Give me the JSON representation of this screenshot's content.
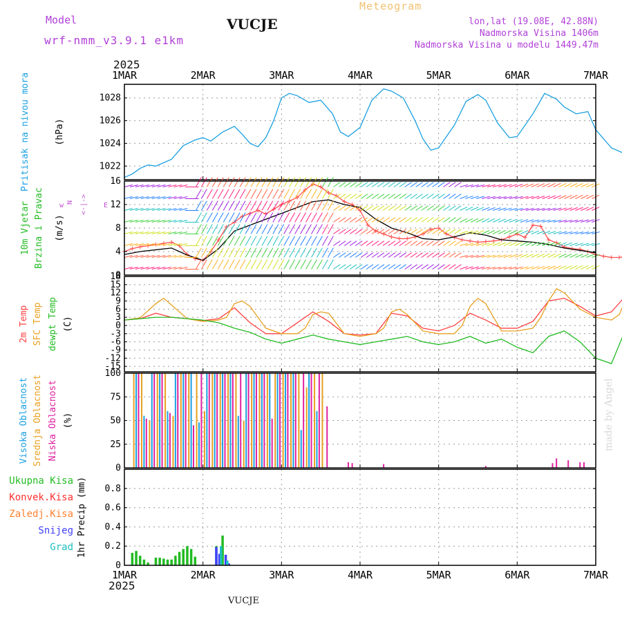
{
  "header": {
    "model_label": "Model",
    "model_name": "wrf-nmm_v3.9.1 e1km",
    "station": "VUCJE",
    "chart_kind": "Meteogram",
    "lonlat": "lon,lat (19.08E, 42.88N)",
    "altitude": "Nadmorska Visina 1406m",
    "model_altitude": "Nadmorska Visina u modelu 1449.47m",
    "year": "2025",
    "footer_station": "VUCJE",
    "watermark": "made by Angel"
  },
  "chart_data": [
    {
      "id": "pressure",
      "type": "line",
      "x_ticks": [
        "1MAR",
        "2MAR",
        "3MAR",
        "4MAR",
        "5MAR",
        "6MAR",
        "7MAR"
      ],
      "labels": [
        {
          "text": "Pritisak na nivou mora",
          "color": "#1aa0e0"
        },
        {
          "text": "(hPa)",
          "color": "#000000"
        }
      ],
      "ylim": [
        1020.8,
        1029.2
      ],
      "yticks": [
        1022,
        1024,
        1026,
        1028
      ],
      "series": [
        {
          "color": "#1aa0e0",
          "x": [
            0,
            0.1,
            0.2,
            0.3,
            0.4,
            0.5,
            0.6,
            0.75,
            0.9,
            1.0,
            1.1,
            1.25,
            1.4,
            1.5,
            1.6,
            1.7,
            1.8,
            1.9,
            2.0,
            2.1,
            2.2,
            2.35,
            2.5,
            2.65,
            2.75,
            2.85,
            3.0,
            3.15,
            3.3,
            3.4,
            3.55,
            3.7,
            3.8,
            3.9,
            4.0,
            4.2,
            4.35,
            4.5,
            4.6,
            4.75,
            4.9,
            5.0,
            5.2,
            5.35,
            5.5,
            5.6,
            5.75,
            5.9,
            6.0,
            6.2,
            6.4,
            6.5,
            6.6,
            6.75,
            6.9,
            7.0
          ],
          "values": [
            1021,
            1021.3,
            1021.8,
            1022.1,
            1022.0,
            1022.3,
            1022.6,
            1023.8,
            1024.3,
            1024.5,
            1024.2,
            1025.0,
            1025.5,
            1024.8,
            1024.0,
            1023.7,
            1024.5,
            1026.0,
            1028.0,
            1028.4,
            1028.2,
            1027.6,
            1027.8,
            1026.6,
            1025.0,
            1024.6,
            1025.4,
            1027.8,
            1028.8,
            1028.6,
            1028.0,
            1026.0,
            1024.4,
            1023.4,
            1023.6,
            1025.6,
            1027.7,
            1028.3,
            1027.8,
            1025.8,
            1024.5,
            1024.6,
            1026.6,
            1028.4,
            1027.9,
            1027.2,
            1026.6,
            1026.8,
            1025.2,
            1023.6,
            1023.0,
            1024.0,
            1024.3,
            1024.0,
            1023.6,
            1023.4
          ]
        }
      ]
    },
    {
      "id": "wind",
      "type": "line",
      "x_ticks": [
        "1MAR",
        "2MAR",
        "3MAR",
        "4MAR",
        "5MAR",
        "6MAR",
        "7MAR"
      ],
      "labels": [
        {
          "text": "10m Vjetar",
          "color": "#22bb22"
        },
        {
          "text": "Brzina i Pravac",
          "color": "#22bb22"
        },
        {
          "text": "(m/s)",
          "color": "#000000"
        }
      ],
      "ylim": [
        0,
        16
      ],
      "yticks": [
        0,
        4,
        8,
        12,
        16
      ],
      "compass": [
        "w",
        "<-|->",
        "E",
        "N",
        "S"
      ],
      "series": [
        {
          "name": "gust",
          "color": "#ff5050",
          "x": [
            0,
            0.1,
            0.2,
            0.3,
            0.4,
            0.5,
            0.6,
            0.7,
            0.8,
            0.9,
            1.0,
            1.1,
            1.2,
            1.3,
            1.4,
            1.5,
            1.6,
            1.7,
            1.8,
            1.9,
            2.0,
            2.1,
            2.2,
            2.3,
            2.4,
            2.5,
            2.6,
            2.7,
            2.8,
            2.9,
            3.0,
            3.1,
            3.2,
            3.3,
            3.4,
            3.5,
            3.6,
            3.7,
            3.8,
            3.9,
            4.0,
            4.1,
            4.2,
            4.3,
            4.4,
            4.5,
            4.6,
            4.7,
            4.8,
            4.9,
            5.0,
            5.1,
            5.2,
            5.3,
            5.4,
            5.5,
            5.6,
            5.7,
            5.8,
            5.9,
            6.0,
            6.1,
            6.2,
            6.3,
            6.4,
            6.5,
            6.6,
            6.7,
            6.8,
            6.9,
            7.0
          ],
          "values": [
            4,
            4.5,
            4.8,
            5,
            5.2,
            5.4,
            5.6,
            5,
            3.5,
            2.8,
            2.5,
            4,
            6,
            8.2,
            9,
            10,
            10.5,
            11,
            10.4,
            11.2,
            12,
            12.6,
            13.2,
            14.5,
            15.5,
            15,
            14,
            13.5,
            12.5,
            12,
            11,
            8.5,
            7.5,
            7,
            6.5,
            6.2,
            6.2,
            6.5,
            7,
            7.8,
            8,
            7,
            6.4,
            6,
            5.8,
            5.6,
            5.7,
            5.8,
            6,
            6.5,
            7,
            6.4,
            8.5,
            8.3,
            6,
            5.5,
            4.8,
            4.5,
            4.4,
            4,
            3.5,
            3.2,
            3,
            3,
            3.2,
            3.4,
            3.2,
            3,
            2.6,
            2.3,
            2.1
          ]
        },
        {
          "name": "mean",
          "color": "#000000",
          "x": [
            0,
            0.2,
            0.4,
            0.6,
            0.8,
            1.0,
            1.2,
            1.4,
            1.6,
            1.8,
            2.0,
            2.2,
            2.4,
            2.6,
            2.8,
            3.0,
            3.2,
            3.4,
            3.6,
            3.8,
            4.0,
            4.2,
            4.4,
            4.6,
            4.8,
            5.0,
            5.2,
            5.4,
            5.6,
            5.8,
            6.0
          ],
          "values": [
            3.5,
            4,
            4.3,
            4.6,
            3.4,
            2.5,
            4.5,
            7.5,
            8.5,
            9.5,
            10.5,
            11.5,
            12.5,
            12.8,
            12,
            11.5,
            9.5,
            8,
            7.2,
            6.2,
            6,
            6.5,
            7.2,
            6.8,
            6,
            5.8,
            5.6,
            5.2,
            4.6,
            4.2,
            3.8
          ]
        }
      ]
    },
    {
      "id": "temperature",
      "type": "line",
      "x_ticks": [
        "1MAR",
        "2MAR",
        "3MAR",
        "4MAR",
        "5MAR",
        "6MAR",
        "7MAR"
      ],
      "labels": [
        {
          "text": "2m Temp",
          "color": "#ff4040"
        },
        {
          "text": "SFC Temp",
          "color": "#e8a020"
        },
        {
          "text": "dewpt Temp",
          "color": "#22bb22"
        },
        {
          "text": "(C)",
          "color": "#000000"
        }
      ],
      "ylim": [
        -17,
        18
      ],
      "yticks": [
        -15,
        -12,
        -9,
        -6,
        -3,
        0,
        3,
        6,
        9,
        12,
        15,
        18
      ],
      "series": [
        {
          "name": "2m Temp",
          "color": "#ff4040",
          "x": [
            0,
            0.2,
            0.4,
            0.6,
            0.8,
            1.0,
            1.2,
            1.4,
            1.6,
            1.8,
            2.0,
            2.2,
            2.4,
            2.6,
            2.8,
            3.0,
            3.2,
            3.4,
            3.6,
            3.8,
            4.0,
            4.2,
            4.4,
            4.6,
            4.8,
            5.0,
            5.2,
            5.4,
            5.6,
            5.8,
            6.0,
            6.2,
            6.4,
            6.6,
            6.8,
            7.0
          ],
          "values": [
            2,
            2.5,
            4.5,
            3,
            2.5,
            1.8,
            2.5,
            6.5,
            1,
            -3,
            -3,
            1,
            5,
            1.5,
            -3,
            -3.5,
            -3,
            4.5,
            3.5,
            -1,
            -2,
            0,
            4.5,
            2,
            -1,
            -1,
            1.5,
            9,
            10,
            7,
            3.5,
            5,
            11.5,
            8,
            7.5,
            7.5
          ]
        },
        {
          "name": "SFC Temp",
          "color": "#e8a020",
          "x": [
            0,
            0.2,
            0.4,
            0.5,
            0.6,
            0.8,
            1.0,
            1.2,
            1.3,
            1.4,
            1.5,
            1.6,
            1.8,
            2.0,
            2.2,
            2.3,
            2.4,
            2.5,
            2.6,
            2.8,
            3.0,
            3.2,
            3.3,
            3.4,
            3.5,
            3.6,
            3.8,
            4.0,
            4.2,
            4.3,
            4.4,
            4.5,
            4.6,
            4.8,
            5.0,
            5.2,
            5.3,
            5.4,
            5.5,
            5.6,
            5.8,
            6.0,
            6.2,
            6.3,
            6.4,
            6.5,
            6.6,
            6.8,
            7.0
          ],
          "values": [
            2,
            2.8,
            8,
            10,
            7.5,
            2.5,
            1.5,
            2,
            3,
            8,
            9,
            7,
            -1,
            -3,
            -3,
            -1,
            4,
            5,
            4.5,
            -3,
            -4,
            -3,
            -1,
            5,
            6,
            4,
            -2,
            -3,
            -3,
            0,
            7,
            10,
            8,
            -2,
            -2,
            -1,
            3,
            9,
            13.5,
            12,
            6,
            3,
            2,
            4,
            11,
            16,
            10,
            1,
            0.5
          ]
        },
        {
          "name": "dewpt Temp",
          "color": "#22bb22",
          "x": [
            0,
            0.2,
            0.4,
            0.6,
            0.8,
            1.0,
            1.2,
            1.4,
            1.6,
            1.8,
            2.0,
            2.2,
            2.4,
            2.6,
            2.8,
            3.0,
            3.2,
            3.4,
            3.6,
            3.8,
            4.0,
            4.2,
            4.4,
            4.6,
            4.8,
            5.0,
            5.2,
            5.4,
            5.6,
            5.8,
            6.0,
            6.2,
            6.4,
            6.6,
            6.8,
            7.0
          ],
          "values": [
            2,
            2.5,
            3,
            3,
            2.5,
            2,
            1,
            -1,
            -2.5,
            -5,
            -6.5,
            -5,
            -3.5,
            -5,
            -6,
            -7,
            -6,
            -5,
            -4,
            -6,
            -7,
            -6,
            -4,
            -6.5,
            -5,
            -8,
            -10,
            -4,
            -2,
            -6,
            -12,
            -14,
            0,
            -5,
            -15,
            -11
          ]
        }
      ]
    },
    {
      "id": "clouds",
      "type": "bar",
      "x_ticks": [
        "1MAR",
        "2MAR",
        "3MAR",
        "4MAR",
        "5MAR",
        "6MAR",
        "7MAR"
      ],
      "labels": [
        {
          "text": "Visoka Oblacnost",
          "color": "#1aa0e0"
        },
        {
          "text": "Srednja Oblacnost",
          "color": "#e8a020"
        },
        {
          "text": "Niska Oblacnost",
          "color": "#e020a0"
        },
        {
          "text": "(%)",
          "color": "#000000"
        }
      ],
      "ylim": [
        0,
        100
      ],
      "yticks": [
        0,
        25,
        50,
        75,
        100
      ],
      "series": [
        {
          "name": "Visoka Oblacnost",
          "color": "#1aa0e0",
          "x": [
            0.15,
            0.25,
            0.35,
            0.45,
            0.55,
            0.65,
            0.75,
            0.85,
            0.95,
            1.05,
            1.15,
            1.25,
            1.35,
            1.45,
            1.55,
            1.65,
            1.75,
            1.85,
            1.95,
            2.05,
            2.15,
            2.25,
            2.35,
            2.45
          ],
          "values": [
            100,
            55,
            100,
            100,
            60,
            100,
            100,
            100,
            48,
            100,
            100,
            100,
            100,
            55,
            100,
            100,
            100,
            100,
            100,
            100,
            100,
            40,
            100,
            60
          ]
        },
        {
          "name": "Srednja Oblacnost",
          "color": "#e8a020",
          "x": [
            0.12,
            0.22,
            0.32,
            0.42,
            0.52,
            0.62,
            0.72,
            0.82,
            0.92,
            1.02,
            1.12,
            1.22,
            1.32,
            1.42,
            1.52,
            1.62,
            1.72,
            1.82,
            1.92,
            2.02,
            2.12,
            2.22,
            2.32,
            2.42,
            2.52
          ],
          "values": [
            100,
            100,
            50,
            100,
            100,
            55,
            100,
            100,
            100,
            60,
            100,
            100,
            100,
            100,
            50,
            100,
            100,
            100,
            100,
            100,
            100,
            100,
            85,
            100,
            100
          ]
        },
        {
          "name": "Niska Oblacnost",
          "color": "#e020a0",
          "x": [
            0.18,
            0.28,
            0.38,
            0.48,
            0.58,
            0.68,
            0.78,
            0.88,
            0.98,
            1.08,
            1.18,
            1.28,
            1.38,
            1.48,
            1.58,
            1.68,
            1.78,
            1.88,
            1.98,
            2.08,
            2.18,
            2.28,
            2.38,
            2.48,
            2.58,
            2.85,
            2.9,
            3.3,
            4.6,
            5.45,
            5.5,
            5.65,
            5.8,
            5.85,
            6.45
          ],
          "values": [
            100,
            52,
            100,
            100,
            58,
            100,
            100,
            45,
            100,
            100,
            100,
            100,
            100,
            100,
            100,
            100,
            100,
            52,
            100,
            100,
            100,
            100,
            100,
            100,
            65,
            6,
            5,
            4,
            2,
            5,
            10,
            8,
            6,
            6,
            10
          ]
        }
      ]
    },
    {
      "id": "precip",
      "type": "bar",
      "x_ticks": [
        "1MAR",
        "2MAR",
        "3MAR",
        "4MAR",
        "5MAR",
        "6MAR",
        "7MAR"
      ],
      "bottom_labels": [
        "1MAR",
        "2MAR",
        "3MAR",
        "4MAR",
        "5MAR",
        "6MAR",
        "7MAR"
      ],
      "labels": [
        {
          "text": "1hr Precip (mm)",
          "color": "#000000"
        }
      ],
      "legend": [
        {
          "text": "Ukupna Kisa",
          "color": "#22bb22"
        },
        {
          "text": "Konvek.Kisa",
          "color": "#ff3030"
        },
        {
          "text": "Zaledj.Kisa",
          "color": "#ff8030"
        },
        {
          "text": "Snijeg",
          "color": "#4040ff"
        },
        {
          "text": "Grad",
          "color": "#20c0c0"
        }
      ],
      "ylim": [
        0,
        1.0
      ],
      "yticks": [
        0,
        0.2,
        0.4,
        0.6,
        0.8
      ],
      "series": [
        {
          "name": "Ukupna Kisa",
          "color": "#22bb22",
          "x": [
            0.1,
            0.15,
            0.2,
            0.25,
            0.3,
            0.4,
            0.45,
            0.5,
            0.55,
            0.6,
            0.65,
            0.7,
            0.75,
            0.8,
            0.85,
            0.9,
            1.17,
            1.25
          ],
          "values": [
            0.13,
            0.15,
            0.1,
            0.06,
            0.03,
            0.08,
            0.08,
            0.07,
            0.06,
            0.06,
            0.1,
            0.14,
            0.17,
            0.2,
            0.17,
            0.09,
            0.2,
            0.31
          ]
        },
        {
          "name": "Snijeg",
          "color": "#4040ff",
          "x": [
            1.17,
            1.21,
            1.29,
            1.33
          ],
          "values": [
            0.19,
            0.12,
            0.11,
            0.02
          ]
        },
        {
          "name": "Grad",
          "color": "#20c0c0",
          "x": [
            1.23,
            1.31
          ],
          "values": [
            0.2,
            0.05
          ]
        }
      ]
    }
  ]
}
